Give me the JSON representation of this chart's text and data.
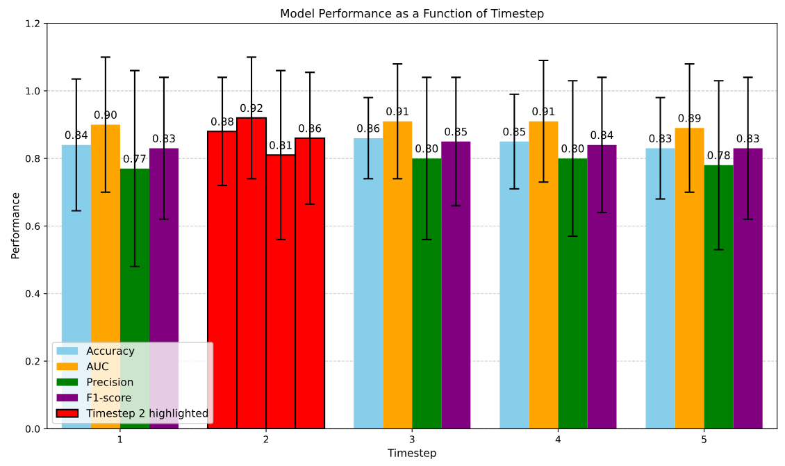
{
  "chart_data": {
    "type": "bar",
    "title": "Model Performance as a Function of Timestep",
    "xlabel": "Timestep",
    "ylabel": "Performance",
    "categories": [
      "1",
      "2",
      "3",
      "4",
      "5"
    ],
    "series": [
      {
        "name": "Accuracy",
        "color": "#87ceeb",
        "colors": [
          "#87ceeb",
          "#ff0000",
          "#87ceeb",
          "#87ceeb",
          "#87ceeb"
        ],
        "values": [
          0.84,
          0.88,
          0.86,
          0.85,
          0.83
        ],
        "value_labels": [
          "0.84",
          "0.88",
          "0.86",
          "0.85",
          "0.83"
        ],
        "errors": [
          0.195,
          0.16,
          0.12,
          0.14,
          0.15
        ]
      },
      {
        "name": "AUC",
        "color": "#ffa500",
        "colors": [
          "#ffa500",
          "#ff0000",
          "#ffa500",
          "#ffa500",
          "#ffa500"
        ],
        "values": [
          0.9,
          0.92,
          0.91,
          0.91,
          0.89
        ],
        "value_labels": [
          "0.90",
          "0.92",
          "0.91",
          "0.91",
          "0.89"
        ],
        "errors": [
          0.2,
          0.18,
          0.17,
          0.18,
          0.19
        ]
      },
      {
        "name": "Precision",
        "color": "#008000",
        "colors": [
          "#008000",
          "#ff0000",
          "#008000",
          "#008000",
          "#008000"
        ],
        "values": [
          0.77,
          0.81,
          0.8,
          0.8,
          0.78
        ],
        "value_labels": [
          "0.77",
          "0.81",
          "0.80",
          "0.80",
          "0.78"
        ],
        "errors": [
          0.29,
          0.25,
          0.24,
          0.23,
          0.25
        ]
      },
      {
        "name": "F1-score",
        "color": "#800080",
        "colors": [
          "#800080",
          "#ff0000",
          "#800080",
          "#800080",
          "#800080"
        ],
        "values": [
          0.83,
          0.86,
          0.85,
          0.84,
          0.83
        ],
        "value_labels": [
          "0.83",
          "0.86",
          "0.85",
          "0.84",
          "0.83"
        ],
        "errors": [
          0.21,
          0.195,
          0.19,
          0.2,
          0.21
        ]
      },
      {
        "name": "Timestep 2 highlighted",
        "color": "#ff0000",
        "values": [
          null,
          null,
          null,
          null,
          null
        ]
      }
    ],
    "ylim": [
      0,
      1.2
    ],
    "yticks": [
      {
        "value": 0,
        "label": "0.0"
      },
      0.2,
      0.4,
      0.6,
      0.8,
      {
        "value": 1,
        "label": "1.0"
      },
      1.2
    ],
    "grid": "y",
    "legend": "bottom left"
  }
}
